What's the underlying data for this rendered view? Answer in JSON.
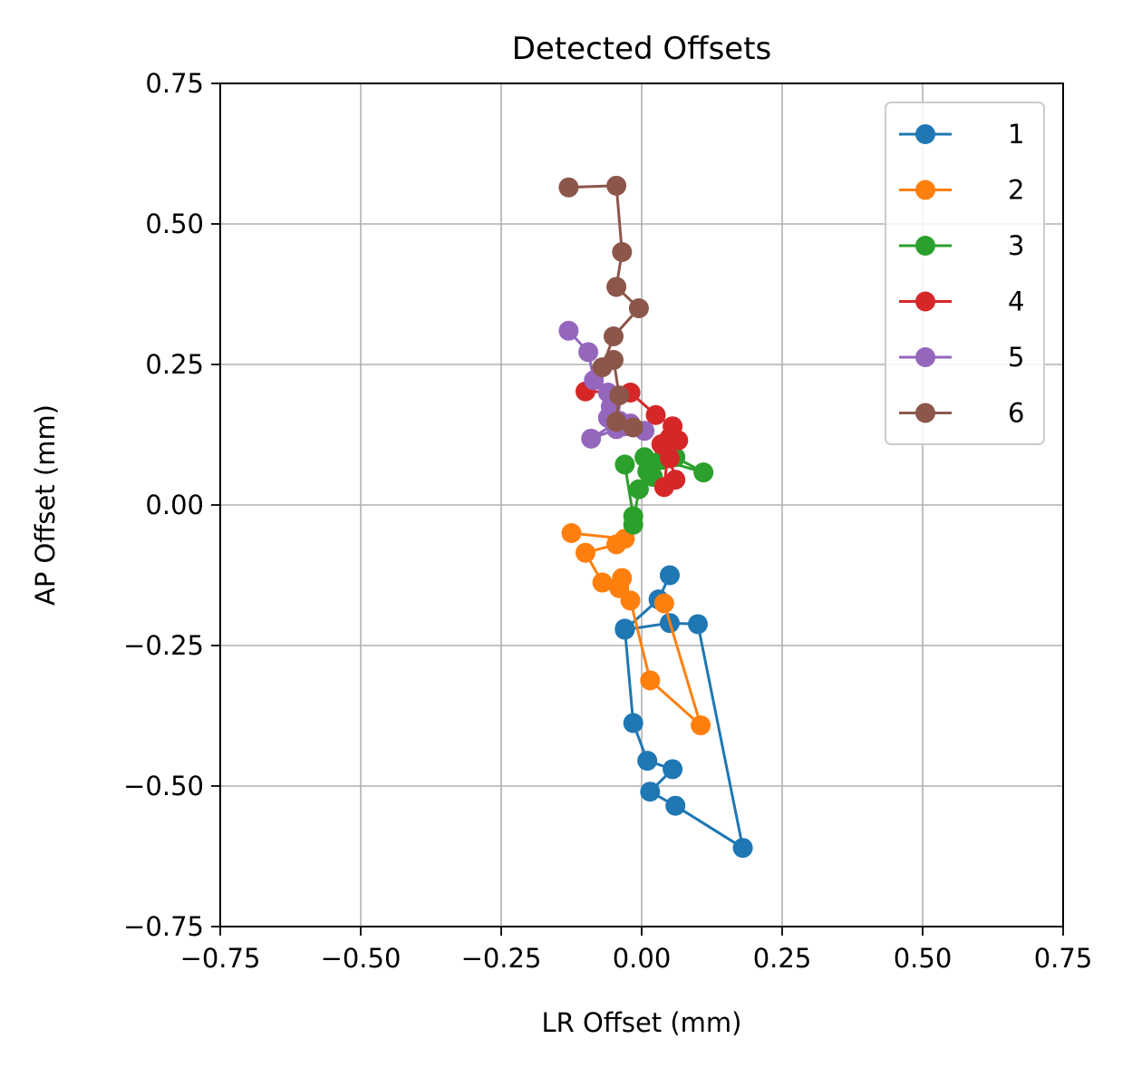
{
  "chart_data": {
    "type": "line",
    "title": "Detected Offsets",
    "xlabel": "LR Offset (mm)",
    "ylabel": "AP Offset (mm)",
    "xlim": [
      -0.75,
      0.75
    ],
    "ylim": [
      -0.75,
      0.75
    ],
    "xticks": [
      -0.75,
      -0.5,
      -0.25,
      0.0,
      0.25,
      0.5,
      0.75
    ],
    "yticks": [
      -0.75,
      -0.5,
      -0.25,
      0.0,
      0.25,
      0.5,
      0.75
    ],
    "xtick_labels": [
      "−0.75",
      "−0.50",
      "−0.25",
      "0.00",
      "0.25",
      "0.50",
      "0.75"
    ],
    "ytick_labels": [
      "−0.75",
      "−0.50",
      "−0.25",
      "0.00",
      "0.25",
      "0.50",
      "0.75"
    ],
    "grid": true,
    "legend_position": "top-right",
    "series": [
      {
        "name": "1",
        "color": "#1f77b4",
        "x": [
          0.05,
          0.03,
          -0.03,
          0.05,
          0.1,
          0.18,
          0.06,
          0.015,
          0.055,
          0.01,
          -0.015,
          -0.03
        ],
        "y": [
          -0.125,
          -0.168,
          -0.222,
          -0.21,
          -0.212,
          -0.61,
          -0.535,
          -0.51,
          -0.47,
          -0.455,
          -0.388,
          -0.22
        ]
      },
      {
        "name": "2",
        "color": "#ff7f0e",
        "x": [
          -0.125,
          -0.03,
          -0.045,
          -0.1,
          -0.07,
          -0.035,
          -0.04,
          -0.02,
          0.015,
          0.105,
          0.04
        ],
        "y": [
          -0.05,
          -0.06,
          -0.07,
          -0.085,
          -0.138,
          -0.13,
          -0.148,
          -0.17,
          -0.312,
          -0.392,
          -0.175
        ]
      },
      {
        "name": "3",
        "color": "#2ca02c",
        "x": [
          -0.03,
          -0.015,
          -0.015,
          -0.005,
          0.01,
          0.005,
          0.02,
          0.035,
          0.11,
          0.06
        ],
        "y": [
          0.072,
          -0.02,
          -0.035,
          0.028,
          0.06,
          0.085,
          0.05,
          0.08,
          0.058,
          0.085
        ]
      },
      {
        "name": "4",
        "color": "#d62728",
        "x": [
          -0.1,
          -0.02,
          0.025,
          0.055,
          0.065,
          0.035,
          0.05,
          0.06,
          0.04,
          0.05,
          0.04
        ],
        "y": [
          0.202,
          0.2,
          0.16,
          0.14,
          0.115,
          0.108,
          0.083,
          0.045,
          0.032,
          0.12,
          0.105
        ]
      },
      {
        "name": "5",
        "color": "#9467bd",
        "x": [
          -0.13,
          -0.095,
          -0.085,
          -0.06,
          -0.055,
          -0.06,
          -0.045,
          -0.04,
          -0.09,
          -0.03,
          -0.02,
          0.005
        ],
        "y": [
          0.31,
          0.272,
          0.222,
          0.2,
          0.175,
          0.155,
          0.135,
          0.15,
          0.118,
          0.14,
          0.145,
          0.132
        ]
      },
      {
        "name": "6",
        "color": "#8c564b",
        "x": [
          -0.13,
          -0.045,
          -0.035,
          -0.045,
          -0.005,
          -0.05,
          -0.07,
          -0.05,
          -0.04,
          -0.045,
          -0.015
        ],
        "y": [
          0.565,
          0.568,
          0.45,
          0.388,
          0.35,
          0.3,
          0.245,
          0.258,
          0.195,
          0.148,
          0.138
        ]
      }
    ]
  }
}
